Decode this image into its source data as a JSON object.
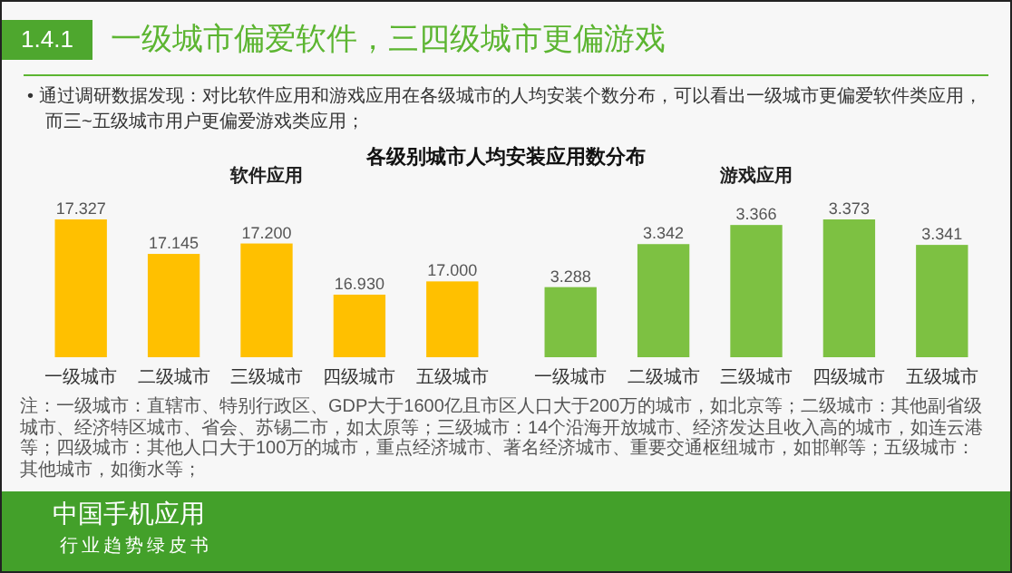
{
  "chart_data": [
    {
      "type": "other",
      "title": "一级城市偏爱软件，三四级城市更偏游戏",
      "annotations": [
        "1.4.1",
        "• 通过调研数据发现：对比软件应用和游戏应用在各级城市的人均安装个数分布，可以看出一级城市更偏爱软件类应用，而三~五级城市用户更偏爱游戏类应用；",
        "各级别城市人均安装应用数分布",
        "注：一级城市：直辖市、特别行政区、GDP大于1600亿且市区人口大于200万的城市，如北京等；二级城市：其他副省级城市、经济特区城市、省会、苏锡二市，如太原等；三级城市：14个沿海开放城市、经济发达且收入高的城市，如连云港等；四级城市：其他人口大于100万的城市，重点经济城市、著名经济城市、重要交通枢纽城市，如邯郸等；五级城市：其他城市，如衡水等；",
        "中国手机应用",
        "行业趋势绿皮书"
      ]
    },
    {
      "type": "bar",
      "title": "软件应用",
      "categories": [
        "一级城市",
        "二级城市",
        "三级城市",
        "四级城市",
        "五级城市"
      ],
      "values": [
        17.327,
        17.145,
        17.2,
        16.93,
        17.0
      ],
      "value_labels": [
        "17.327",
        "17.145",
        "17.200",
        "16.930",
        "17.000"
      ],
      "color": "#ffc000",
      "ylim": [
        16.6,
        17.327
      ],
      "tick_labels": "x"
    },
    {
      "type": "bar",
      "title": "游戏应用",
      "categories": [
        "一级城市",
        "二级城市",
        "三级城市",
        "四级城市",
        "五级城市"
      ],
      "values": [
        3.288,
        3.342,
        3.366,
        3.373,
        3.341
      ],
      "value_labels": [
        "3.288",
        "3.342",
        "3.366",
        "3.373",
        "3.341"
      ],
      "color": "#7dc142",
      "ylim": [
        3.2,
        3.373
      ],
      "tick_labels": "x"
    }
  ]
}
